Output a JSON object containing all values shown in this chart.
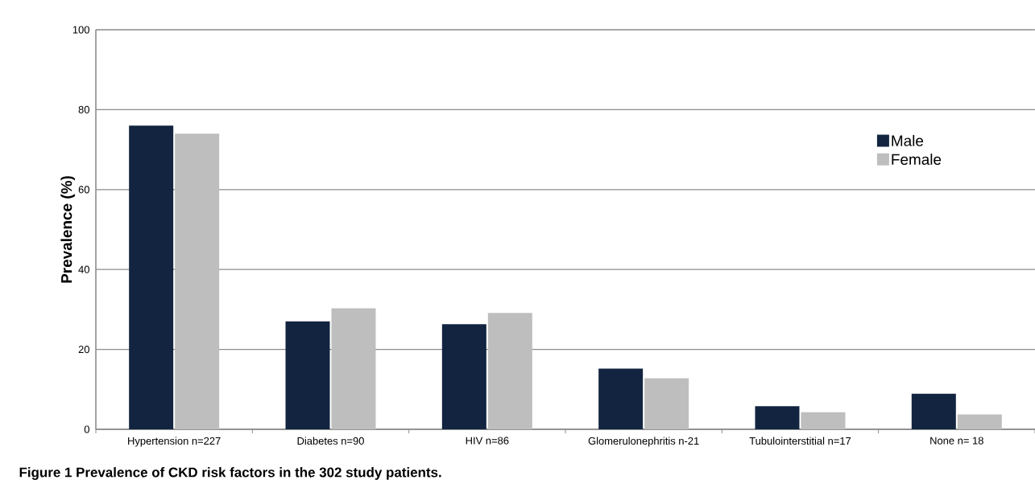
{
  "chart_data": {
    "type": "bar",
    "ylabel": "Prevalence (%)",
    "categories": [
      "Hypertension n=227",
      "Diabetes n=90",
      "HIV n=86",
      "Glomerulonephritis n-21",
      "Tubulointerstitial n=17",
      "None n= 18"
    ],
    "series": [
      {
        "name": "Male",
        "color": "#12243f",
        "values": [
          76,
          27,
          26.3,
          15.2,
          5.8,
          8.9
        ]
      },
      {
        "name": "Female",
        "color": "#bebebe",
        "values": [
          74,
          30.3,
          29.1,
          12.8,
          4.3,
          3.7
        ]
      }
    ],
    "ylim": [
      0,
      100
    ],
    "yticks": [
      0,
      20,
      40,
      60,
      80,
      100
    ],
    "grid": "y",
    "legend": "top right",
    "annotations": [
      "Figure 1 Prevalence of CKD risk factors in the 302 study patients."
    ]
  }
}
